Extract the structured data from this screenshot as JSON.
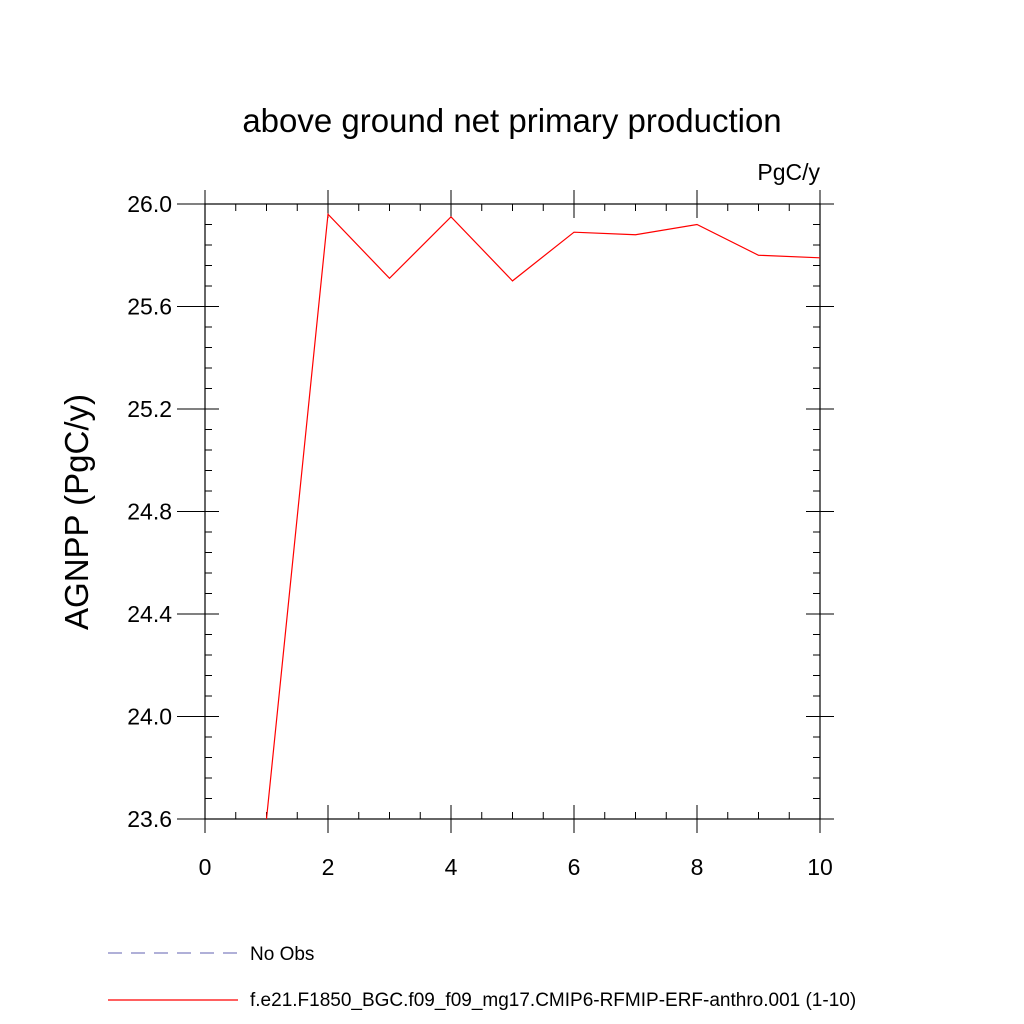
{
  "chart_data": {
    "type": "line",
    "title": "above ground net primary production",
    "units_label": "PgC/y",
    "xlabel": "",
    "ylabel": "AGNPP  (PgC/y)",
    "xlim": [
      0,
      10
    ],
    "ylim": [
      23.6,
      26.0
    ],
    "x_ticks": [
      0,
      2,
      4,
      6,
      8,
      10
    ],
    "x_tick_labels": [
      "0",
      "2",
      "4",
      "6",
      "8",
      "10"
    ],
    "y_ticks": [
      23.6,
      24.0,
      24.4,
      24.8,
      25.2,
      25.6,
      26.0
    ],
    "y_tick_labels": [
      "23.6",
      "24.0",
      "24.4",
      "24.8",
      "25.2",
      "25.6",
      "26.0"
    ],
    "grid": false,
    "legend_position": "bottom",
    "series": [
      {
        "name": "f.e21.F1850_BGC.f09_f09_mg17.CMIP6-RFMIP-ERF-anthro.001 (1-10)",
        "color": "#ff0000",
        "style": "solid",
        "x": [
          1,
          2,
          3,
          4,
          5,
          6,
          7,
          8,
          9,
          10
        ],
        "y": [
          23.6,
          25.96,
          25.71,
          25.95,
          25.7,
          25.89,
          25.88,
          25.92,
          25.8,
          25.79
        ]
      }
    ],
    "legend": [
      {
        "label": "No Obs",
        "color": "#8080c0",
        "style": "dashed"
      },
      {
        "label": "f.e21.F1850_BGC.f09_f09_mg17.CMIP6-RFMIP-ERF-anthro.001 (1-10)",
        "color": "#ff0000",
        "style": "solid"
      }
    ]
  }
}
